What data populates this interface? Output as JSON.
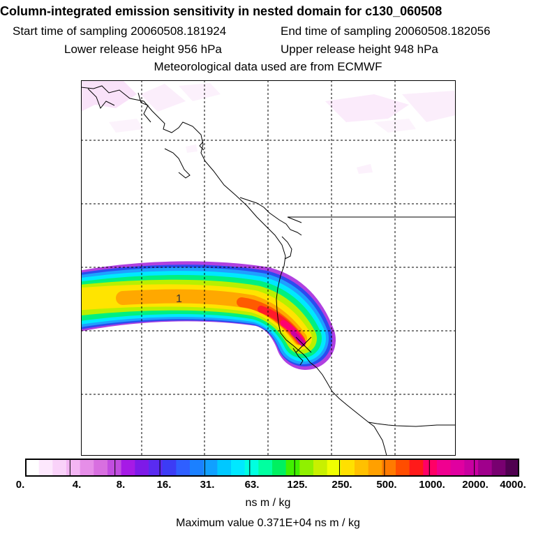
{
  "header": {
    "title": "Column-integrated emission sensitivity in nested domain for c130_060508",
    "start_time": "Start time of sampling 20060508.181924",
    "end_time": "End time of sampling 20060508.182056",
    "lower_height": "Lower release height  956 hPa",
    "upper_height": "Upper release height  948 hPa",
    "met_data": "Meteorological data used are from ECMWF"
  },
  "map": {
    "plume_label": "1",
    "release_marker": "release-point-x"
  },
  "colorbar": {
    "colors": [
      "#ffffff",
      "#fde8fd",
      "#f9d2f9",
      "#f3b5f3",
      "#e68ee8",
      "#d86fe0",
      "#c24de0",
      "#a61ae6",
      "#7e1ae8",
      "#5a2bf0",
      "#3c3cf5",
      "#2f5fff",
      "#1b80ff",
      "#10a0ff",
      "#00c8ff",
      "#00e8ff",
      "#00ffe0",
      "#00ffa0",
      "#00f060",
      "#40f000",
      "#90f000",
      "#c8f000",
      "#f0ff00",
      "#ffe000",
      "#ffc000",
      "#ffa000",
      "#ff7a00",
      "#ff4d00",
      "#ff1a1a",
      "#ff0066",
      "#f00090",
      "#e000a0",
      "#c800a0",
      "#a0008c",
      "#780070",
      "#500050"
    ],
    "ticks": [
      "0.",
      "4.",
      "8.",
      "16.",
      "31.",
      "63.",
      "125.",
      "250.",
      "500.",
      "1000.",
      "2000.",
      "4000."
    ],
    "units": "ns m / kg",
    "max_value": "Maximum value  0.371E+04 ns m / kg"
  }
}
